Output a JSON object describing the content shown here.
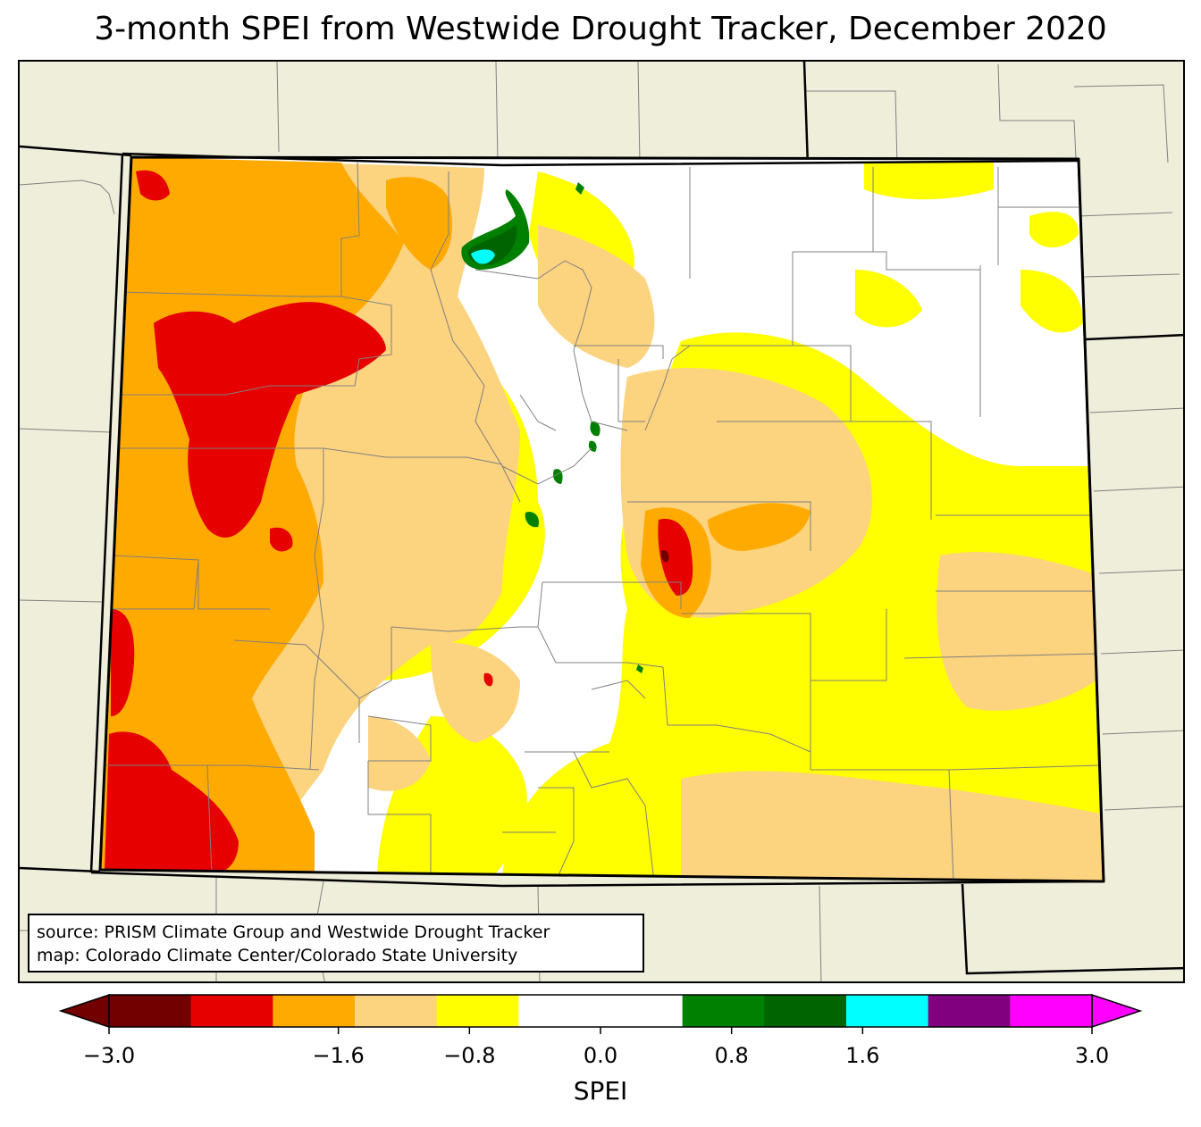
{
  "title": "3-month SPEI from Westwide Drought Tracker, December 2020",
  "source_lines": [
    "source: PRISM Climate Group and Westwide Drought Tracker",
    "map: Colorado Climate Center/Colorado State University"
  ],
  "colorbar": {
    "label": "SPEI",
    "ticks": [
      "−3.0",
      "−1.6",
      "−0.8",
      "0.0",
      "0.8",
      "1.6",
      "3.0"
    ],
    "tick_values": [
      -3.0,
      -1.6,
      -0.8,
      0.0,
      0.8,
      1.6,
      3.0
    ],
    "range": [
      -3.0,
      3.0
    ],
    "extend": "both",
    "bins": [
      {
        "color": "#730000"
      },
      {
        "color": "#e60000"
      },
      {
        "color": "#ffaa00"
      },
      {
        "color": "#fcd37f"
      },
      {
        "color": "#ffff00"
      },
      {
        "color": "#ffffff"
      },
      {
        "color": "#ffffff"
      },
      {
        "color": "#008000"
      },
      {
        "color": "#006400"
      },
      {
        "color": "#00ffff"
      },
      {
        "color": "#800080"
      },
      {
        "color": "#ff00ff"
      }
    ],
    "under_color": "#730000",
    "over_color": "#ff00ff"
  },
  "map": {
    "region": "Colorado",
    "background_color": "#efeedb",
    "county_line_color": "#808080",
    "state_line_color": "#000000"
  }
}
